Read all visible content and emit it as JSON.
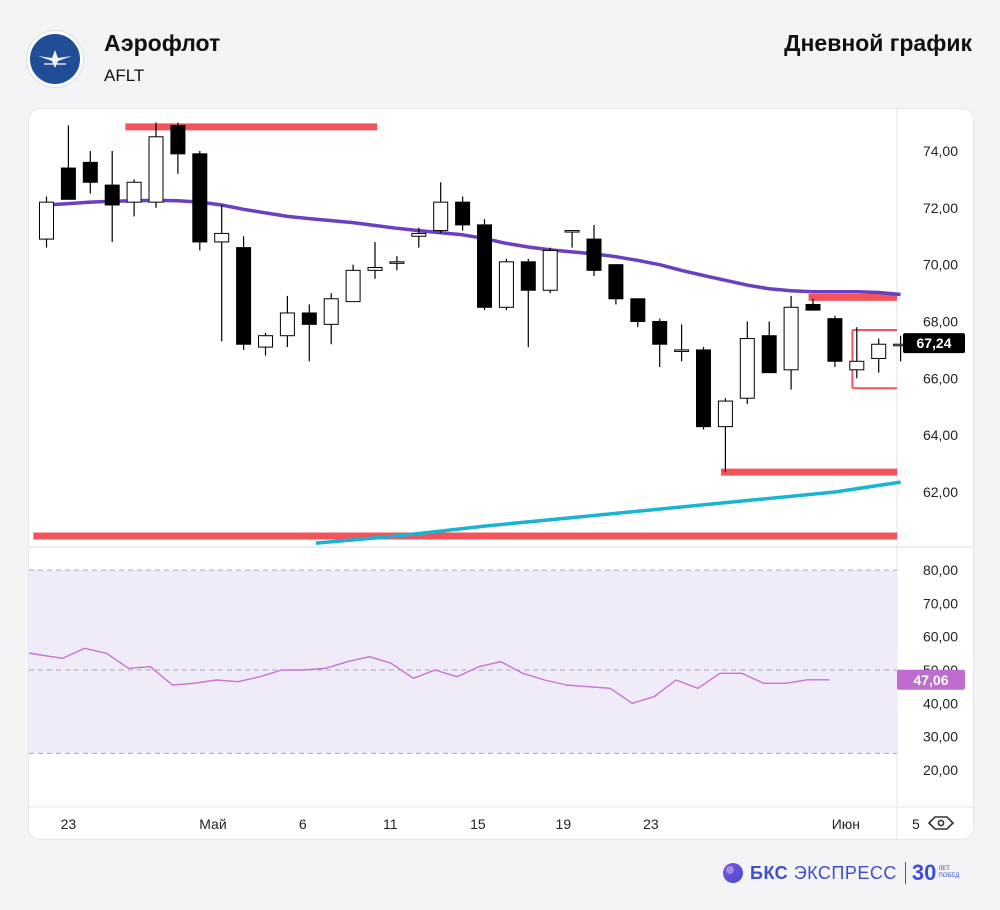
{
  "header": {
    "company": "Аэрофлот",
    "ticker": "AFLT",
    "chart_kind": "Дневной график"
  },
  "footer": {
    "brand_bold": "БКС",
    "brand_light": "ЭКСПРЕСС",
    "anniversary_number": "30",
    "anniversary_top": "ЛЕТ",
    "anniversary_bottom": "ПОБЕД"
  },
  "icons": {
    "logo": "airplane-emblem-icon",
    "settings": "eye-settings-icon"
  },
  "colors": {
    "bear_candle": "#000000",
    "bull_candle": "#ffffff",
    "ma_slow": "#6a3fc2",
    "ma_long": "#19b5cf",
    "levels": "#f2545b",
    "rsi_line": "#c774d1",
    "rsi_band": "#f0ebf9",
    "price_badge": "#000000",
    "rsi_badge": "#c06bd0",
    "brand": "#3c4fd0"
  },
  "chart_data": {
    "type": "candlestick",
    "price_axis": {
      "ticks": [
        "74,00",
        "72,00",
        "70,00",
        "68,00",
        "66,00",
        "64,00",
        "62,00"
      ],
      "tick_values": [
        74,
        72,
        70,
        68,
        66,
        64,
        62
      ],
      "ylim": [
        60.2,
        75.9
      ],
      "last_price_label": "67,24",
      "last_price": 67.24
    },
    "rsi_axis": {
      "ticks": [
        "80,00",
        "70,00",
        "60,00",
        "50,00",
        "40,00",
        "30,00",
        "20,00"
      ],
      "tick_values": [
        80,
        70,
        60,
        50,
        40,
        30,
        20
      ],
      "ylim": [
        17,
        88
      ],
      "bands": [
        25,
        50,
        80
      ],
      "last_label": "47,06",
      "last_value": 47.06
    },
    "x_axis": {
      "labels": [
        "23",
        "Май",
        "6",
        "11",
        "15",
        "19",
        "23",
        "Июн",
        "5"
      ],
      "label_index": [
        1,
        7.6,
        11.7,
        15.7,
        19.7,
        23.6,
        27.6,
        36.5,
        39.7
      ]
    },
    "candles": [
      {
        "o": 70.9,
        "h": 72.4,
        "l": 70.6,
        "c": 72.2
      },
      {
        "o": 73.4,
        "h": 74.9,
        "l": 72.3,
        "c": 72.3
      },
      {
        "o": 73.6,
        "h": 74.0,
        "l": 72.5,
        "c": 72.9
      },
      {
        "o": 72.8,
        "h": 74.0,
        "l": 70.8,
        "c": 72.1
      },
      {
        "o": 72.2,
        "h": 73.0,
        "l": 71.7,
        "c": 72.9
      },
      {
        "o": 72.2,
        "h": 75.0,
        "l": 72.0,
        "c": 74.5
      },
      {
        "o": 74.9,
        "h": 75.0,
        "l": 73.2,
        "c": 73.9
      },
      {
        "o": 73.9,
        "h": 74.0,
        "l": 70.5,
        "c": 70.8
      },
      {
        "o": 70.8,
        "h": 72.1,
        "l": 67.3,
        "c": 71.1
      },
      {
        "o": 70.6,
        "h": 71.0,
        "l": 67.0,
        "c": 67.2
      },
      {
        "o": 67.1,
        "h": 67.6,
        "l": 66.8,
        "c": 67.5
      },
      {
        "o": 67.5,
        "h": 68.9,
        "l": 67.1,
        "c": 68.3
      },
      {
        "o": 68.3,
        "h": 68.6,
        "l": 66.6,
        "c": 67.9
      },
      {
        "o": 67.9,
        "h": 69.0,
        "l": 67.2,
        "c": 68.8
      },
      {
        "o": 68.7,
        "h": 70.0,
        "l": 68.7,
        "c": 69.8
      },
      {
        "o": 69.8,
        "h": 70.8,
        "l": 69.5,
        "c": 69.9
      },
      {
        "o": 70.1,
        "h": 70.3,
        "l": 69.8,
        "c": 70.1
      },
      {
        "o": 71.0,
        "h": 71.3,
        "l": 70.6,
        "c": 71.1
      },
      {
        "o": 71.2,
        "h": 72.9,
        "l": 71.1,
        "c": 72.2
      },
      {
        "o": 72.2,
        "h": 72.4,
        "l": 71.2,
        "c": 71.4
      },
      {
        "o": 71.4,
        "h": 71.6,
        "l": 68.4,
        "c": 68.5
      },
      {
        "o": 68.5,
        "h": 70.2,
        "l": 68.4,
        "c": 70.1
      },
      {
        "o": 70.1,
        "h": 70.2,
        "l": 67.1,
        "c": 69.1
      },
      {
        "o": 69.1,
        "h": 70.6,
        "l": 69.0,
        "c": 70.5
      },
      {
        "o": 71.2,
        "h": 71.2,
        "l": 70.6,
        "c": 71.2
      },
      {
        "o": 70.9,
        "h": 71.4,
        "l": 69.6,
        "c": 69.8
      },
      {
        "o": 70.0,
        "h": 70.0,
        "l": 68.6,
        "c": 68.8
      },
      {
        "o": 68.8,
        "h": 68.8,
        "l": 67.8,
        "c": 68.0
      },
      {
        "o": 68.0,
        "h": 68.1,
        "l": 66.4,
        "c": 67.2
      },
      {
        "o": 67.0,
        "h": 67.9,
        "l": 66.6,
        "c": 67.0
      },
      {
        "o": 67.0,
        "h": 67.1,
        "l": 64.2,
        "c": 64.3
      },
      {
        "o": 64.3,
        "h": 65.3,
        "l": 62.7,
        "c": 65.2
      },
      {
        "o": 65.3,
        "h": 68.0,
        "l": 65.1,
        "c": 67.4
      },
      {
        "o": 67.5,
        "h": 68.0,
        "l": 66.2,
        "c": 66.2
      },
      {
        "o": 66.3,
        "h": 68.9,
        "l": 65.6,
        "c": 68.5
      },
      {
        "o": 68.6,
        "h": 68.8,
        "l": 68.4,
        "c": 68.4
      },
      {
        "o": 68.1,
        "h": 68.2,
        "l": 66.4,
        "c": 66.6
      },
      {
        "o": 66.3,
        "h": 67.8,
        "l": 66.0,
        "c": 66.6
      },
      {
        "o": 66.7,
        "h": 67.4,
        "l": 66.2,
        "c": 67.2
      },
      {
        "o": 67.2,
        "h": 67.5,
        "l": 66.6,
        "c": 67.2
      }
    ],
    "moving_average_slow": [
      72.1,
      72.15,
      72.2,
      72.23,
      72.25,
      72.26,
      72.25,
      72.2,
      72.1,
      71.95,
      71.82,
      71.7,
      71.62,
      71.55,
      71.48,
      71.38,
      71.28,
      71.2,
      71.12,
      71.05,
      70.92,
      70.75,
      70.62,
      70.52,
      70.45,
      70.38,
      70.28,
      70.15,
      70.0,
      69.8,
      69.62,
      69.45,
      69.28,
      69.15,
      69.08,
      69.05,
      69.05,
      69.05,
      69.02,
      68.95
    ],
    "moving_average_long": [
      {
        "i": 12.3,
        "v": 60.2
      },
      {
        "i": 16,
        "v": 60.45
      },
      {
        "i": 20,
        "v": 60.8
      },
      {
        "i": 24,
        "v": 61.1
      },
      {
        "i": 28,
        "v": 61.4
      },
      {
        "i": 32,
        "v": 61.7
      },
      {
        "i": 36,
        "v": 62.0
      },
      {
        "i": 39,
        "v": 62.35
      }
    ],
    "horizontal_levels": [
      {
        "from": 3.6,
        "to": 15.1,
        "y": 74.85,
        "style": "thick"
      },
      {
        "from": 34.8,
        "to": 40.7,
        "y": 68.85,
        "style": "thick"
      },
      {
        "from": 30.8,
        "to": 40.7,
        "y": 62.7,
        "style": "thick"
      },
      {
        "from": -0.6,
        "to": 40.7,
        "y": 60.45,
        "style": "thick"
      },
      {
        "from": 36.8,
        "to": 39.8,
        "y": 67.7,
        "style": "thin"
      },
      {
        "from": 36.8,
        "to": 39.8,
        "y": 65.65,
        "style": "thin"
      }
    ],
    "rsi": [
      55.5,
      54.5,
      53.5,
      56.5,
      55.0,
      50.5,
      51.0,
      45.5,
      46.0,
      47.0,
      46.5,
      48.0,
      50.0,
      50.0,
      50.5,
      52.5,
      54.0,
      52.0,
      47.5,
      50.0,
      48.0,
      51.0,
      52.5,
      49.0,
      47.0,
      45.5,
      45.0,
      44.5,
      40.0,
      42.0,
      47.0,
      44.5,
      49.0,
      49.0,
      46.0,
      46.0,
      47.06,
      47.06
    ]
  }
}
